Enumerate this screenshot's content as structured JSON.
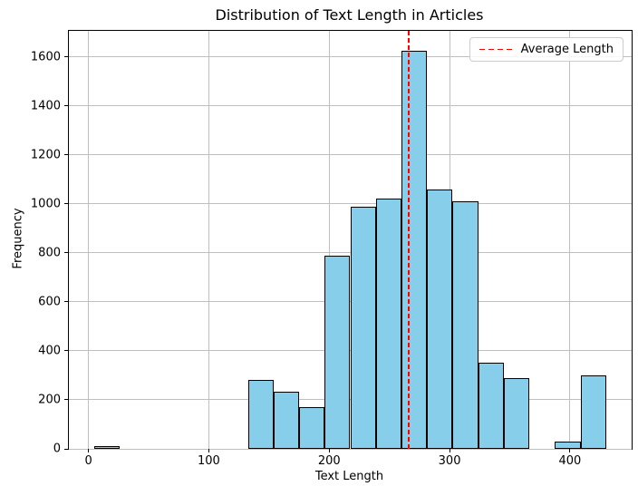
{
  "chart_data": {
    "type": "bar",
    "subtype": "histogram",
    "title": "Distribution of Text Length in Articles",
    "xlabel": "Text Length",
    "ylabel": "Frequency",
    "bin_edges": [
      5,
      26.25,
      47.5,
      68.75,
      90,
      111.25,
      132.5,
      153.75,
      175,
      196.25,
      217.5,
      238.75,
      260,
      281.25,
      302.5,
      323.75,
      345,
      366.25,
      387.5,
      408.75,
      430
    ],
    "counts": [
      12,
      0,
      0,
      0,
      0,
      0,
      280,
      235,
      170,
      790,
      990,
      1020,
      1625,
      1060,
      1010,
      350,
      290,
      0,
      30,
      300
    ],
    "x_ticks": [
      0,
      100,
      200,
      300,
      400
    ],
    "y_ticks": [
      0,
      200,
      400,
      600,
      800,
      1000,
      1200,
      1400,
      1600
    ],
    "xlim": [
      -16.25,
      451.25
    ],
    "ylim": [
      0,
      1706.25
    ],
    "grid": true,
    "bar_fill_color": "#87ceeb",
    "bar_edge_color": "#000000",
    "average_line": {
      "x": 266,
      "color": "#ff0000",
      "style": "dashed"
    },
    "legend": {
      "label": "Average Length",
      "position": "upper-right"
    }
  }
}
